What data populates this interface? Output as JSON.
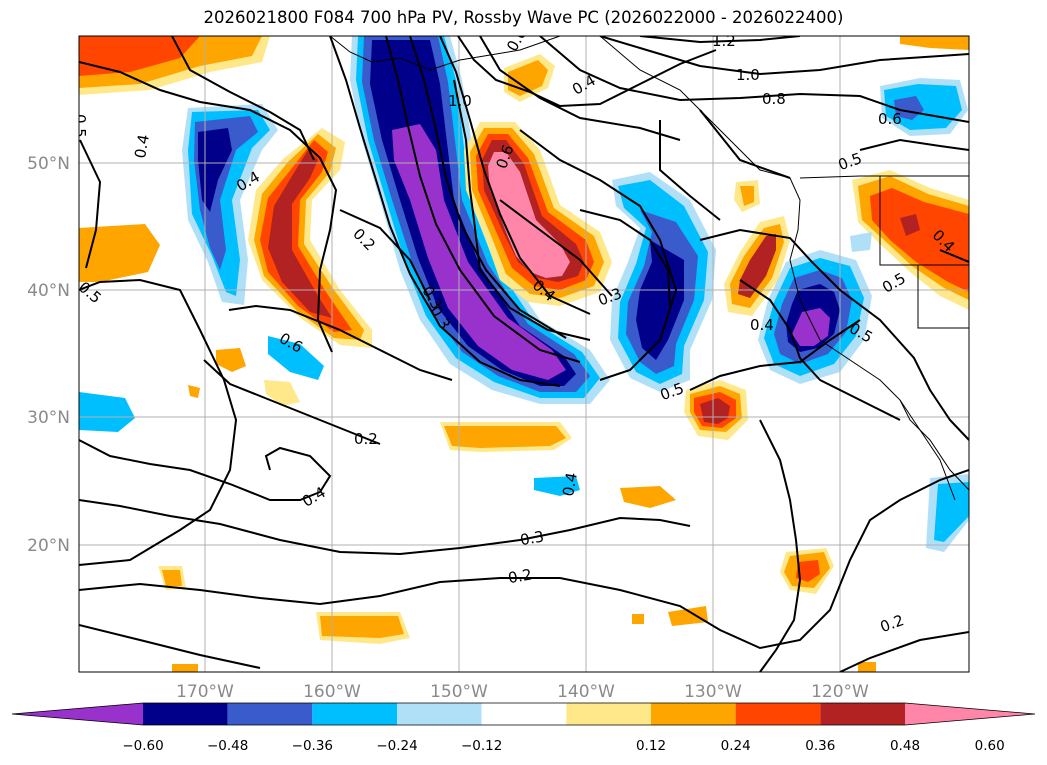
{
  "title": "2026021800 F084 700 hPa PV, Rossby Wave PC (2026022000 - 2026022400)",
  "axes": {
    "lat_labels": [
      "50°N",
      "40°N",
      "30°N",
      "20°N"
    ],
    "lon_labels": [
      "170°W",
      "160°W",
      "150°W",
      "140°W",
      "130°W",
      "120°W"
    ]
  },
  "colorbar": {
    "ticks": [
      "−0.60",
      "−0.48",
      "−0.36",
      "−0.24",
      "−0.12",
      "0.12",
      "0.24",
      "0.36",
      "0.48",
      "0.60"
    ],
    "colors": [
      "#9932cc",
      "#00008b",
      "#3a5bcc",
      "#00bfff",
      "#b0e0f8",
      "#ffffff",
      "#ffe88a",
      "#ffa500",
      "#ff4500",
      "#b22222",
      "#ff86a8"
    ]
  },
  "contour_labels": [
    "0.5",
    "0.4",
    "0.4",
    "1.0",
    "0.6",
    "0.2",
    "0.3",
    "0.3",
    "0.4",
    "0.3",
    "0.6",
    "0.4",
    "1.0",
    "0.8",
    "0.6",
    "0.5",
    "1.2",
    "0.4",
    "0.5",
    "0.4",
    "0.5",
    "0.5",
    "0.2",
    "0.4",
    "0.4",
    "0.3",
    "0.2",
    "0.2",
    "0.5",
    "0.6"
  ]
}
